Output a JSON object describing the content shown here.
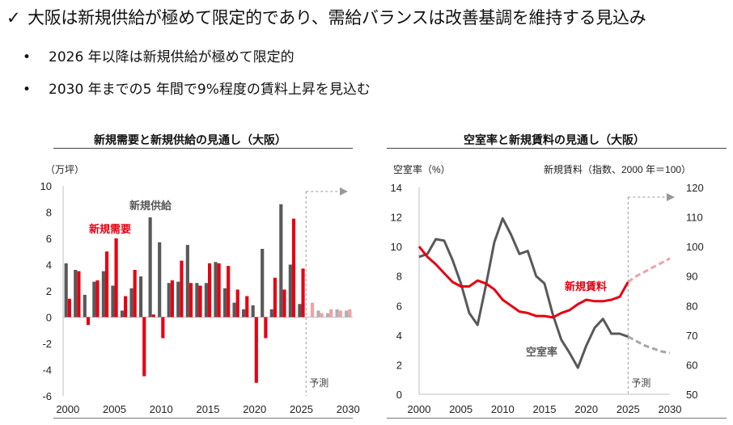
{
  "header": {
    "check_icon": "✓",
    "headline": "大阪は新規供給が極めて限定的であり、需給バランスは改善基調を維持する見込み",
    "bullet_icon": "•",
    "bullets": [
      "2026 年以降は新規供給が極めて限定的",
      "2030 年までの5 年間で9%程度の賃料上昇を見込む"
    ]
  },
  "colors": {
    "red": "#e60012",
    "red_light": "#f2a0a8",
    "gray": "#595959",
    "gray_light": "#a6a6a6",
    "grid": "#d9d9d9"
  },
  "chart_data": [
    {
      "type": "bar",
      "title": "新規需要と新規供給の見通し（大阪）",
      "unit_label": "（万坪）",
      "ylim": [
        -6,
        10
      ],
      "yticks": [
        -6,
        -4,
        -2,
        0,
        2,
        4,
        6,
        8,
        10
      ],
      "x": [
        2000,
        2001,
        2002,
        2003,
        2004,
        2005,
        2006,
        2007,
        2008,
        2009,
        2010,
        2011,
        2012,
        2013,
        2014,
        2015,
        2016,
        2017,
        2018,
        2019,
        2020,
        2021,
        2022,
        2023,
        2024,
        2025,
        2026,
        2027,
        2028,
        2029,
        2030
      ],
      "xticks": [
        2000,
        2005,
        2010,
        2015,
        2020,
        2025,
        2030
      ],
      "forecast_from": 2025.5,
      "forecast_label": "予測",
      "series": [
        {
          "name": "新規供給",
          "color": "#595959",
          "forecast_color": "#b0b0b0",
          "values": [
            4.1,
            3.6,
            1.7,
            2.7,
            3.5,
            2.4,
            0.5,
            2.2,
            3.1,
            7.6,
            5.7,
            2.6,
            2.7,
            5.5,
            2.6,
            2.6,
            4.2,
            2.2,
            1.1,
            0.6,
            0.9,
            5.2,
            0.6,
            8.6,
            4.0,
            1.0,
            0.0,
            0.5,
            0.3,
            0.6,
            0.5
          ]
        },
        {
          "name": "新規需要",
          "color": "#e60012",
          "forecast_color": "#f2a0a8",
          "values": [
            1.4,
            3.5,
            -0.6,
            2.8,
            5.0,
            6.0,
            1.6,
            3.6,
            -4.5,
            0.2,
            -1.6,
            2.8,
            4.3,
            2.6,
            2.4,
            4.1,
            4.1,
            3.9,
            2.1,
            1.6,
            -5.0,
            -1.6,
            3.0,
            2.1,
            7.5,
            3.7,
            1.1,
            0.3,
            0.6,
            0.5,
            0.6
          ]
        }
      ],
      "labels": {
        "supply": "新規供給",
        "demand": "新規需要"
      }
    },
    {
      "type": "line",
      "title": "空室率と新規賃料の見通し（大阪）",
      "ylabel_left": "空室率（%）",
      "ylabel_right": "新規賃料（指数、2000 年＝100）",
      "ylim_left": [
        0,
        14
      ],
      "yticks_left": [
        0,
        2,
        4,
        6,
        8,
        10,
        12,
        14
      ],
      "ylim_right": [
        50,
        120
      ],
      "yticks_right": [
        50,
        60,
        70,
        80,
        90,
        100,
        110,
        120
      ],
      "xlim": [
        2000,
        2030
      ],
      "xticks": [
        2000,
        2005,
        2010,
        2015,
        2020,
        2025,
        2030
      ],
      "forecast_from": 2025,
      "forecast_label": "予測",
      "series": [
        {
          "name": "空室率",
          "axis": "left",
          "color": "#595959",
          "forecast_color": "#a6a6a6",
          "x": [
            2000,
            2001,
            2002,
            2003,
            2004,
            2005,
            2006,
            2007,
            2008,
            2009,
            2010,
            2011,
            2012,
            2013,
            2014,
            2015,
            2016,
            2017,
            2018,
            2019,
            2020,
            2021,
            2022,
            2023,
            2024,
            2025
          ],
          "values": [
            9.3,
            9.5,
            10.5,
            10.4,
            9.1,
            7.5,
            5.5,
            4.7,
            7.4,
            10.3,
            11.9,
            10.8,
            9.5,
            9.7,
            8.0,
            7.5,
            5.4,
            3.7,
            2.8,
            1.8,
            3.3,
            4.5,
            5.1,
            4.1,
            4.1,
            3.9
          ],
          "forecast_x": [
            2025,
            2026,
            2027,
            2028,
            2029,
            2030
          ],
          "forecast_values": [
            3.9,
            3.6,
            3.3,
            3.1,
            2.9,
            2.8
          ]
        },
        {
          "name": "新規賃料",
          "axis": "right",
          "color": "#e60012",
          "forecast_color": "#f2a0a8",
          "x": [
            2000,
            2001,
            2002,
            2003,
            2004,
            2005,
            2006,
            2007,
            2008,
            2009,
            2010,
            2011,
            2012,
            2013,
            2014,
            2015,
            2016,
            2017,
            2018,
            2019,
            2020,
            2021,
            2022,
            2023,
            2024,
            2025
          ],
          "values": [
            100,
            96.5,
            94,
            91,
            88,
            86.5,
            86.5,
            88.5,
            87.5,
            85.5,
            82,
            80,
            78,
            77.5,
            76.5,
            76.5,
            76,
            77.5,
            78.5,
            80.5,
            82,
            81.5,
            81.5,
            82,
            83,
            88
          ],
          "forecast_x": [
            2025,
            2026,
            2027,
            2028,
            2029,
            2030
          ],
          "forecast_values": [
            88,
            90,
            91.5,
            93,
            94.5,
            96
          ]
        }
      ],
      "labels": {
        "rent": "新規賃料",
        "vacancy": "空室率"
      }
    }
  ]
}
